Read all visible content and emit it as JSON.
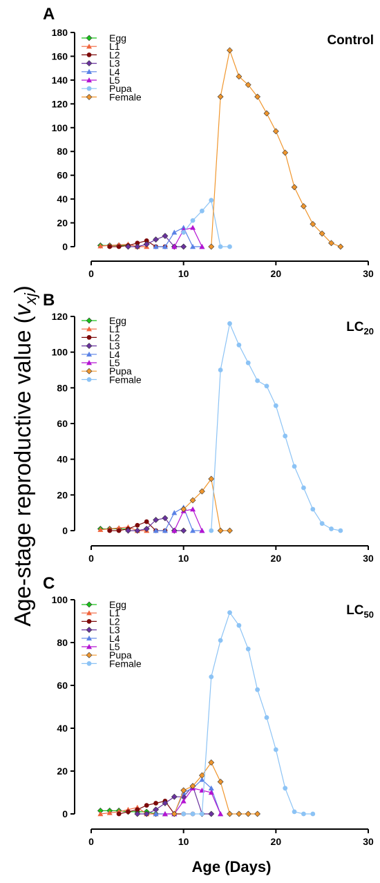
{
  "figure": {
    "ylabel_main": "Age-stage reproductive value (",
    "ylabel_var": "v",
    "ylabel_sub": "xj",
    "ylabel_close": ")",
    "xlabel": "Age (Days)"
  },
  "chart_data": [
    {
      "type": "line",
      "panel_letter": "A",
      "title": "Control",
      "title_sub": "",
      "xlim": [
        0,
        30
      ],
      "ylim": [
        0,
        180
      ],
      "xticks": [
        0,
        10,
        20,
        30
      ],
      "yticks": [
        0,
        20,
        40,
        60,
        80,
        100,
        120,
        140,
        160,
        180
      ],
      "legend": [
        {
          "label": "Egg",
          "marker": "diamond",
          "color": "#19c219"
        },
        {
          "label": "L1",
          "marker": "triangle",
          "color": "#f0643c"
        },
        {
          "label": "L2",
          "marker": "circle",
          "color": "#7d0a0a"
        },
        {
          "label": "L3",
          "marker": "diamond",
          "color": "#6a329f"
        },
        {
          "label": "L4",
          "marker": "triangle",
          "color": "#5a82e6"
        },
        {
          "label": "L5",
          "marker": "triangle",
          "color": "#b414d2"
        },
        {
          "label": "Pupa",
          "marker": "circle",
          "color": "#8cc3f5"
        },
        {
          "label": "Female",
          "marker": "diamond",
          "color": "#f0962d"
        }
      ],
      "series": [
        {
          "name": "Egg",
          "marker": "diamond",
          "color": "#19c219",
          "x": [
            1,
            2,
            3,
            4
          ],
          "y": [
            1,
            1,
            1,
            1
          ]
        },
        {
          "name": "L1",
          "marker": "triangle",
          "color": "#f0643c",
          "x": [
            1,
            2,
            3,
            4,
            5,
            6
          ],
          "y": [
            0.5,
            1,
            1.5,
            2,
            0,
            0
          ]
        },
        {
          "name": "L2",
          "marker": "circle",
          "color": "#7d0a0a",
          "x": [
            2,
            3,
            4,
            5,
            6,
            7,
            8
          ],
          "y": [
            0,
            0,
            1,
            3,
            5,
            0,
            0
          ]
        },
        {
          "name": "L3",
          "marker": "diamond",
          "color": "#6a329f",
          "x": [
            4,
            5,
            6,
            7,
            8,
            9,
            10
          ],
          "y": [
            0,
            0,
            2,
            6,
            9,
            0,
            0
          ]
        },
        {
          "name": "L4",
          "marker": "triangle",
          "color": "#5a82e6",
          "x": [
            7,
            8,
            9,
            10,
            11,
            12
          ],
          "y": [
            0,
            0,
            12,
            16,
            0,
            0
          ]
        },
        {
          "name": "L5",
          "marker": "triangle",
          "color": "#b414d2",
          "x": [
            9,
            10,
            11,
            12
          ],
          "y": [
            0,
            14,
            16,
            0
          ]
        },
        {
          "name": "Pupa",
          "marker": "circle",
          "color": "#8cc3f5",
          "x": [
            10,
            11,
            12,
            13,
            14,
            15
          ],
          "y": [
            12,
            22,
            30,
            39,
            0,
            0
          ]
        },
        {
          "name": "Female",
          "marker": "diamond",
          "color": "#f0962d",
          "x": [
            13,
            14,
            15,
            16,
            17,
            18,
            19,
            20,
            21,
            22,
            23,
            24,
            25,
            26,
            27
          ],
          "y": [
            0,
            126,
            165,
            143,
            136,
            126,
            112,
            97,
            79,
            50,
            34,
            19,
            11,
            3,
            0
          ]
        }
      ]
    },
    {
      "type": "line",
      "panel_letter": "B",
      "title": "LC",
      "title_sub": "20",
      "xlim": [
        0,
        30
      ],
      "ylim": [
        0,
        120
      ],
      "xticks": [
        0,
        10,
        20,
        30
      ],
      "yticks": [
        0,
        20,
        40,
        60,
        80,
        100,
        120
      ],
      "legend": [
        {
          "label": "Egg",
          "marker": "diamond",
          "color": "#19c219"
        },
        {
          "label": "L1",
          "marker": "triangle",
          "color": "#f0643c"
        },
        {
          "label": "L2",
          "marker": "circle",
          "color": "#7d0a0a"
        },
        {
          "label": "L3",
          "marker": "diamond",
          "color": "#6a329f"
        },
        {
          "label": "L4",
          "marker": "triangle",
          "color": "#5a82e6"
        },
        {
          "label": "L5",
          "marker": "triangle",
          "color": "#b414d2"
        },
        {
          "label": "Pupa",
          "marker": "diamond",
          "color": "#f0962d"
        },
        {
          "label": "Female",
          "marker": "circle",
          "color": "#8cc3f5"
        }
      ],
      "series": [
        {
          "name": "Egg",
          "marker": "diamond",
          "color": "#19c219",
          "x": [
            1,
            2,
            3,
            4
          ],
          "y": [
            1,
            1,
            1,
            1
          ]
        },
        {
          "name": "L1",
          "marker": "triangle",
          "color": "#f0643c",
          "x": [
            1,
            2,
            3,
            4,
            5,
            6
          ],
          "y": [
            0.5,
            1,
            1.5,
            2,
            0,
            0
          ]
        },
        {
          "name": "L2",
          "marker": "circle",
          "color": "#7d0a0a",
          "x": [
            2,
            3,
            4,
            5,
            6,
            7,
            8
          ],
          "y": [
            0,
            0,
            1,
            3,
            5,
            0,
            0
          ]
        },
        {
          "name": "L3",
          "marker": "diamond",
          "color": "#6a329f",
          "x": [
            4,
            5,
            6,
            7,
            8,
            9,
            10
          ],
          "y": [
            0,
            0,
            1,
            6,
            7,
            0,
            0
          ]
        },
        {
          "name": "L4",
          "marker": "triangle",
          "color": "#5a82e6",
          "x": [
            7,
            8,
            9,
            10,
            11,
            12
          ],
          "y": [
            0,
            0,
            10,
            13,
            0,
            0
          ]
        },
        {
          "name": "L5",
          "marker": "triangle",
          "color": "#b414d2",
          "x": [
            9,
            10,
            11,
            12
          ],
          "y": [
            0,
            11,
            12,
            0
          ]
        },
        {
          "name": "Pupa",
          "marker": "diamond",
          "color": "#f0962d",
          "x": [
            10,
            11,
            12,
            13,
            14,
            15
          ],
          "y": [
            12,
            17,
            22,
            29,
            0,
            0
          ]
        },
        {
          "name": "Female",
          "marker": "circle",
          "color": "#8cc3f5",
          "x": [
            13,
            14,
            15,
            16,
            17,
            18,
            19,
            20,
            21,
            22,
            23,
            24,
            25,
            26,
            27
          ],
          "y": [
            0,
            90,
            116,
            104,
            94,
            84,
            81,
            70,
            53,
            36,
            24,
            12,
            4,
            1,
            0
          ]
        }
      ]
    },
    {
      "type": "line",
      "panel_letter": "C",
      "title": "LC",
      "title_sub": "50",
      "xlim": [
        0,
        30
      ],
      "ylim": [
        0,
        100
      ],
      "xticks": [
        0,
        10,
        20,
        30
      ],
      "yticks": [
        0,
        20,
        40,
        60,
        80,
        100
      ],
      "legend": [
        {
          "label": "Egg",
          "marker": "diamond",
          "color": "#19c219"
        },
        {
          "label": "L1",
          "marker": "triangle",
          "color": "#f0643c"
        },
        {
          "label": "L2",
          "marker": "circle",
          "color": "#7d0a0a"
        },
        {
          "label": "L3",
          "marker": "diamond",
          "color": "#6a329f"
        },
        {
          "label": "L4",
          "marker": "triangle",
          "color": "#5a82e6"
        },
        {
          "label": "L5",
          "marker": "triangle",
          "color": "#b414d2"
        },
        {
          "label": "Pupa",
          "marker": "diamond",
          "color": "#f0962d"
        },
        {
          "label": "Female",
          "marker": "circle",
          "color": "#8cc3f5"
        }
      ],
      "series": [
        {
          "name": "Egg",
          "marker": "diamond",
          "color": "#19c219",
          "x": [
            1,
            2,
            3,
            4,
            5,
            6,
            7
          ],
          "y": [
            1.5,
            1.5,
            1.5,
            1,
            1,
            1,
            0
          ]
        },
        {
          "name": "L1",
          "marker": "triangle",
          "color": "#f0643c",
          "x": [
            1,
            2,
            3,
            4,
            5,
            6,
            7,
            8
          ],
          "y": [
            0,
            0.5,
            1,
            2,
            3,
            0,
            0,
            0
          ]
        },
        {
          "name": "L2",
          "marker": "circle",
          "color": "#7d0a0a",
          "x": [
            3,
            4,
            5,
            6,
            7,
            8,
            9,
            10,
            11
          ],
          "y": [
            0,
            1,
            2,
            4,
            5,
            6,
            0,
            0,
            0
          ]
        },
        {
          "name": "L3",
          "marker": "diamond",
          "color": "#6a329f",
          "x": [
            5,
            6,
            7,
            8,
            9,
            10,
            11,
            12,
            13
          ],
          "y": [
            0,
            0,
            2,
            5,
            8,
            8,
            13,
            0,
            0
          ]
        },
        {
          "name": "L4",
          "marker": "triangle",
          "color": "#5a82e6",
          "x": [
            7,
            8,
            9,
            10,
            11,
            12,
            13,
            14
          ],
          "y": [
            0,
            0,
            0,
            10,
            12,
            16,
            12,
            0
          ]
        },
        {
          "name": "L5",
          "marker": "triangle",
          "color": "#b414d2",
          "x": [
            8,
            9,
            10,
            11,
            12,
            13,
            14
          ],
          "y": [
            0,
            0,
            6,
            12,
            11,
            10,
            0
          ]
        },
        {
          "name": "Pupa",
          "marker": "diamond",
          "color": "#f0962d",
          "x": [
            9,
            10,
            11,
            12,
            13,
            14,
            15,
            16,
            17,
            18
          ],
          "y": [
            0,
            11,
            13,
            18,
            24,
            15,
            0,
            0,
            0,
            0
          ]
        },
        {
          "name": "Female",
          "marker": "circle",
          "color": "#8cc3f5",
          "x": [
            10,
            11,
            12,
            13,
            14,
            15,
            16,
            17,
            18,
            19,
            20,
            21,
            22,
            23,
            24
          ],
          "y": [
            0,
            0,
            0,
            64,
            81,
            94,
            88,
            77,
            58,
            45,
            30,
            12,
            1,
            0,
            0
          ]
        }
      ]
    }
  ]
}
